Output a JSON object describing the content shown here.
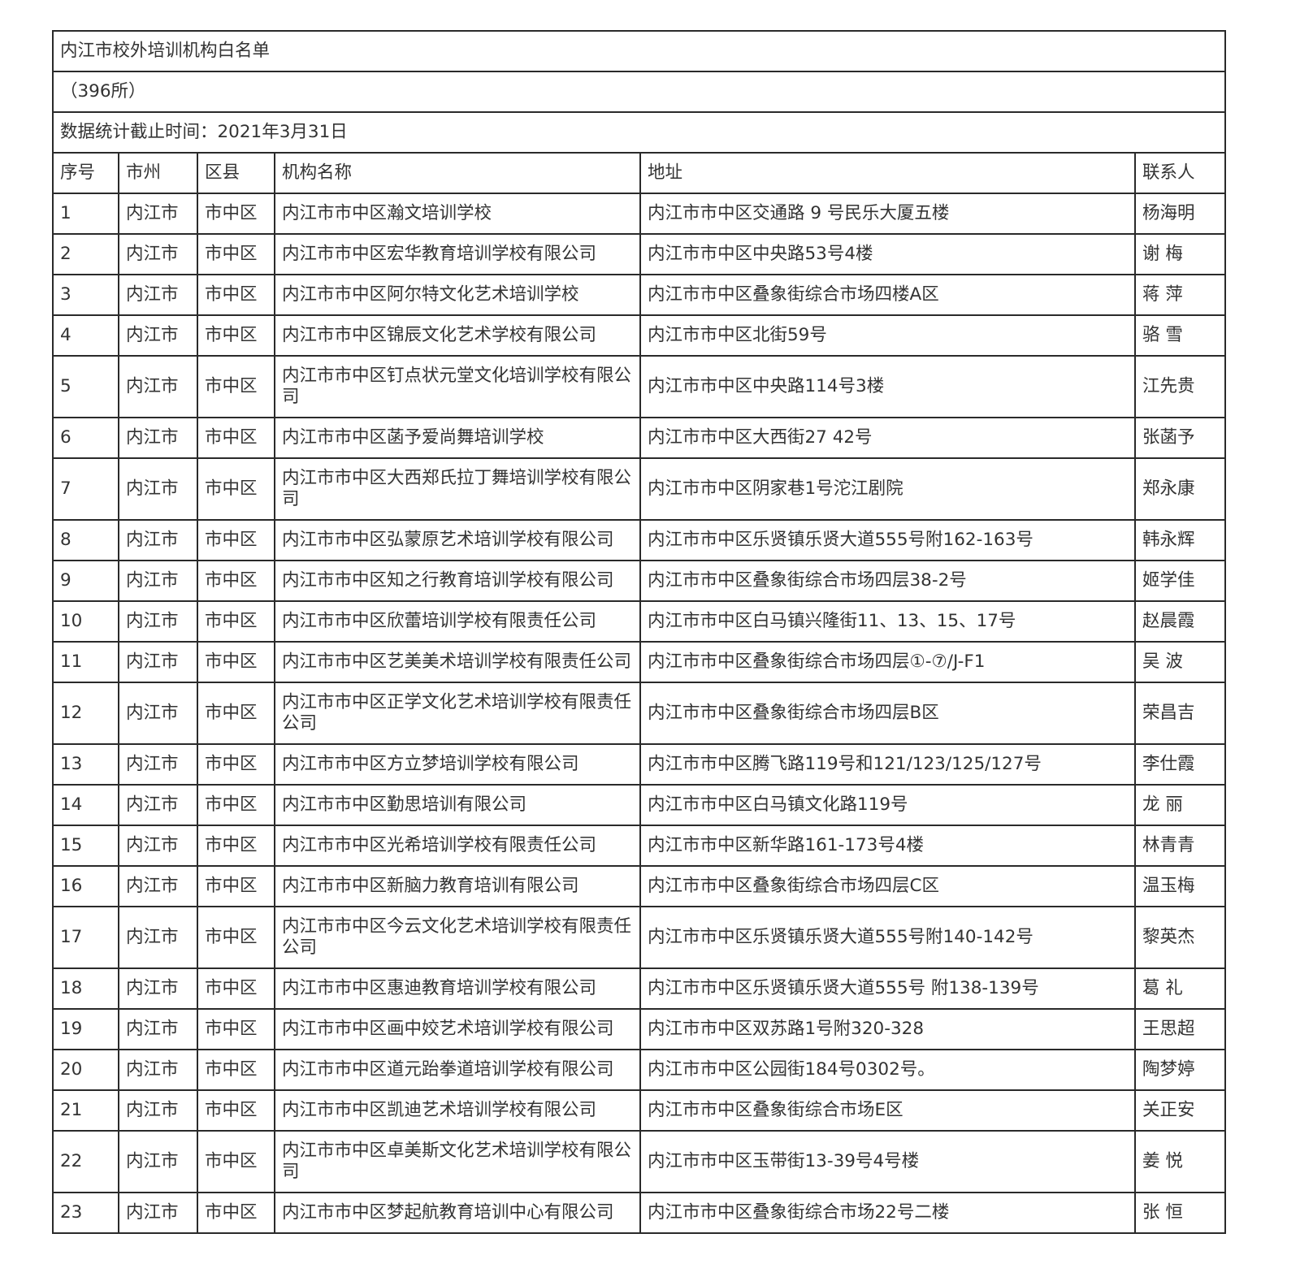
{
  "document": {
    "title": "内江市校外培训机构白名单",
    "count": "（396所）",
    "stat_date": "数据统计截止时间：2021年3月31日"
  },
  "table": {
    "headers": [
      "序号",
      "市州",
      "区县",
      "机构名称",
      "地址",
      "联系人"
    ],
    "rows": [
      [
        "1",
        "内江市",
        "市中区",
        "内江市市中区瀚文培训学校",
        "内江市市中区交通路 9 号民乐大厦五楼",
        "杨海明"
      ],
      [
        "2",
        "内江市",
        "市中区",
        "内江市市中区宏华教育培训学校有限公司",
        "内江市市中区中央路53号4楼",
        "谢 梅"
      ],
      [
        "3",
        "内江市",
        "市中区",
        "内江市市中区阿尔特文化艺术培训学校",
        "内江市市中区叠象街综合市场四楼A区",
        "蒋 萍"
      ],
      [
        "4",
        "内江市",
        "市中区",
        "内江市市中区锦辰文化艺术学校有限公司",
        "内江市市中区北街59号",
        "骆 雪"
      ],
      [
        "5",
        "内江市",
        "市中区",
        "内江市市中区钉点状元堂文化培训学校有限公司",
        "内江市市中区中央路114号3楼",
        "江先贵"
      ],
      [
        "6",
        "内江市",
        "市中区",
        "内江市市中区菡予爱尚舞培训学校",
        "内江市市中区大西街27 42号",
        "张菡予"
      ],
      [
        "7",
        "内江市",
        "市中区",
        "内江市市中区大西郑氏拉丁舞培训学校有限公司",
        "内江市市中区阴家巷1号沱江剧院",
        "郑永康"
      ],
      [
        "8",
        "内江市",
        "市中区",
        "内江市市中区弘蒙原艺术培训学校有限公司",
        "内江市市中区乐贤镇乐贤大道555号附162-163号",
        "韩永辉"
      ],
      [
        "9",
        "内江市",
        "市中区",
        "内江市市中区知之行教育培训学校有限公司",
        "内江市市中区叠象街综合市场四层38-2号",
        "姬学佳"
      ],
      [
        "10",
        "内江市",
        "市中区",
        "内江市市中区欣蕾培训学校有限责任公司",
        "内江市市中区白马镇兴隆街11、13、15、17号",
        "赵晨霞"
      ],
      [
        "11",
        "内江市",
        "市中区",
        "内江市市中区艺美美术培训学校有限责任公司",
        "内江市市中区叠象街综合市场四层①-⑦/J-F1",
        "吴 波"
      ],
      [
        "12",
        "内江市",
        "市中区",
        "内江市市中区正学文化艺术培训学校有限责任公司",
        "内江市市中区叠象街综合市场四层B区",
        "荣昌吉"
      ],
      [
        "13",
        "内江市",
        "市中区",
        "内江市市中区方立梦培训学校有限公司",
        "内江市市中区腾飞路119号和121/123/125/127号",
        "李仕霞"
      ],
      [
        "14",
        "内江市",
        "市中区",
        "内江市市中区勤思培训有限公司",
        "内江市市中区白马镇文化路119号",
        "龙 丽"
      ],
      [
        "15",
        "内江市",
        "市中区",
        "内江市市中区光希培训学校有限责任公司",
        "内江市市中区新华路161-173号4楼",
        "林青青"
      ],
      [
        "16",
        "内江市",
        "市中区",
        "内江市市中区新脑力教育培训有限公司",
        "内江市市中区叠象街综合市场四层C区",
        "温玉梅"
      ],
      [
        "17",
        "内江市",
        "市中区",
        "内江市市中区今云文化艺术培训学校有限责任公司",
        "内江市市中区乐贤镇乐贤大道555号附140-142号",
        "黎英杰"
      ],
      [
        "18",
        "内江市",
        "市中区",
        "内江市市中区惠迪教育培训学校有限公司",
        "内江市市中区乐贤镇乐贤大道555号 附138-139号",
        "葛 礼"
      ],
      [
        "19",
        "内江市",
        "市中区",
        "内江市市中区画中姣艺术培训学校有限公司",
        "内江市市中区双苏路1号附320-328",
        "王思超"
      ],
      [
        "20",
        "内江市",
        "市中区",
        "内江市市中区道元跆拳道培训学校有限公司",
        "内江市市中区公园街184号0302号。",
        "陶梦婷"
      ],
      [
        "21",
        "内江市",
        "市中区",
        "内江市市中区凯迪艺术培训学校有限公司",
        "内江市市中区叠象街综合市场E区",
        "关正安"
      ],
      [
        "22",
        "内江市",
        "市中区",
        "内江市市中区卓美斯文化艺术培训学校有限公司",
        "内江市市中区玉带街13-39号4号楼",
        "姜 悦"
      ],
      [
        "23",
        "内江市",
        "市中区",
        "内江市市中区梦起航教育培训中心有限公司",
        "内江市市中区叠象街综合市场22号二楼",
        "张 恒"
      ]
    ]
  }
}
